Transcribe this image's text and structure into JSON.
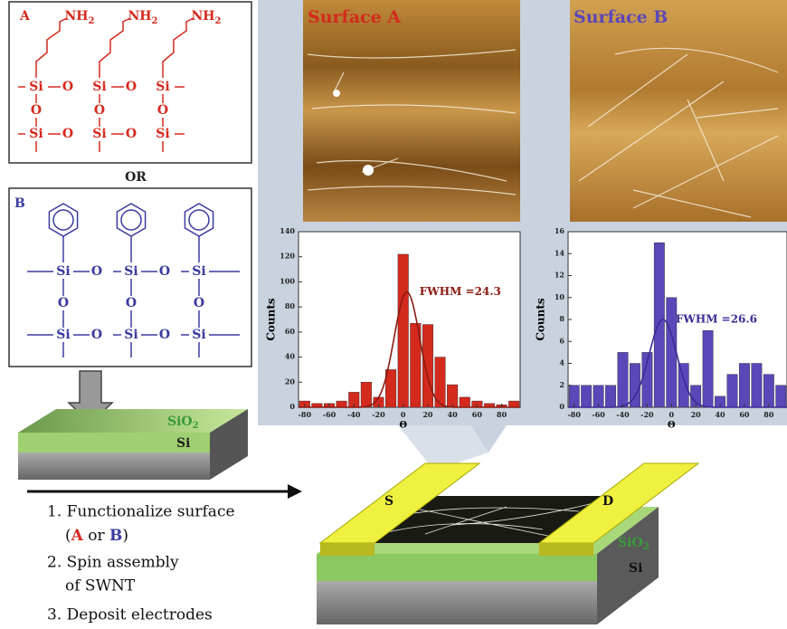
{
  "chart_data": [
    {
      "type": "histogram",
      "title": "Surface A",
      "color": "#d42a1e",
      "curve_color": "#8b1a10",
      "x_label": "Θ",
      "y_label": "Counts",
      "bins": [
        -85,
        -75,
        -65,
        -55,
        -45,
        -35,
        -25,
        -15,
        -5,
        5,
        15,
        25,
        35,
        45,
        55,
        65,
        75,
        85,
        95
      ],
      "values": [
        5,
        3,
        3,
        5,
        12,
        20,
        8,
        30,
        122,
        67,
        66,
        40,
        18,
        8,
        5,
        3,
        2,
        5
      ],
      "xlim": [
        -85,
        95
      ],
      "xticks": [
        -80,
        -60,
        -40,
        -20,
        0,
        20,
        40,
        60,
        80
      ],
      "ylim": [
        0,
        140
      ],
      "yticks": [
        0,
        20,
        40,
        60,
        80,
        100,
        120,
        140
      ],
      "fit": {
        "center": 3,
        "peak": 92,
        "fwhm": 24.3,
        "label": "FWHM =24.3"
      }
    },
    {
      "type": "histogram",
      "title": "Surface B",
      "color": "#5a48b8",
      "curve_color": "#3a2a96",
      "x_label": "Θ",
      "y_label": "Counts",
      "bins": [
        -85,
        -75,
        -65,
        -55,
        -45,
        -35,
        -25,
        -15,
        -5,
        5,
        15,
        25,
        35,
        45,
        55,
        65,
        75,
        85,
        95
      ],
      "values": [
        2,
        2,
        2,
        2,
        5,
        4,
        5,
        15,
        10,
        4,
        2,
        7,
        1,
        3,
        4,
        4,
        3,
        2
      ],
      "xlim": [
        -85,
        95
      ],
      "xticks": [
        -80,
        -60,
        -40,
        -20,
        0,
        20,
        40,
        60,
        80
      ],
      "ylim": [
        0,
        16
      ],
      "yticks": [
        0,
        2,
        4,
        6,
        8,
        10,
        12,
        14,
        16
      ],
      "fit": {
        "center": -7,
        "peak": 8,
        "fwhm": 26.6,
        "label": "FWHM =26.6"
      }
    }
  ],
  "structure_a": {
    "label": "A",
    "nh": "NH",
    "sub": "2",
    "si": "Si",
    "o": "O"
  },
  "or_label": "OR",
  "structure_b": {
    "label": "B",
    "si": "Si",
    "o": "O"
  },
  "substrate": {
    "oxide": "SiO",
    "sub": "2",
    "silicon": "Si"
  },
  "steps": {
    "step1": "1. Functionalize surface",
    "open": "(",
    "a": "A",
    "or": " or ",
    "b": "B",
    "close": ")",
    "step2": "2. Spin assembly",
    "step2b": "of SWNT",
    "step3": "3. Deposit electrodes"
  },
  "device": {
    "source": "S",
    "drain": "D",
    "oxide": "SiO",
    "sub": "2",
    "silicon": "Si"
  }
}
